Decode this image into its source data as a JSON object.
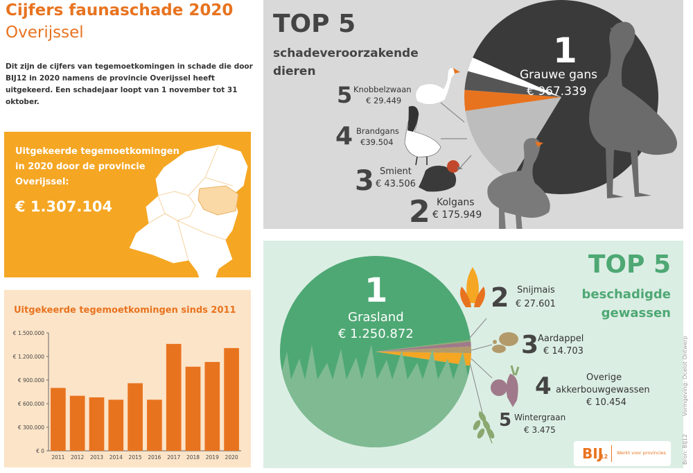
{
  "header": {
    "title": "Cijfers faunaschade 2020",
    "region": "Overijssel",
    "intro": "Dit zijn de cijfers van tegemoetkomingen in schade die door BIJ12 in 2020 namens de provincie Overijssel heeft uitgekeerd. Een schadejaar loopt van 1 november tot 31 oktober."
  },
  "province": {
    "label": "Uitgekeerde tegemoetkomingen in 2020 door de provincie Overijssel:",
    "amount": "€ 1.307.104"
  },
  "bar_section": {
    "title": "Uitgekeerde tegemoetkomingen sinds 2011"
  },
  "chart_data": {
    "type": "bar",
    "title": "Uitgekeerde tegemoetkomingen sinds 2011",
    "categories": [
      "2011",
      "2012",
      "2013",
      "2014",
      "2015",
      "2016",
      "2017",
      "2018",
      "2019",
      "2020"
    ],
    "values": [
      800000,
      700000,
      680000,
      650000,
      860000,
      650000,
      1360000,
      1070000,
      1130000,
      1307104
    ],
    "ylim": [
      0,
      1500000
    ],
    "yticks": [
      "€ 0",
      "€ 300.000",
      "€ 600.000",
      "€ 900.000",
      "€ 1.200.000",
      "€ 1.500.000"
    ],
    "ytick_values": [
      0,
      300000,
      600000,
      900000,
      1200000,
      1500000
    ],
    "color": "#e8731f",
    "grid": false
  },
  "animals": {
    "top": "TOP 5",
    "subtitle_line1": "schadeveroorzakende",
    "subtitle_line2": "dieren",
    "items": [
      {
        "rank": "1",
        "name": "Grauwe gans",
        "value": "€ 967.339",
        "amount": 967339,
        "color": "#3a3a3a"
      },
      {
        "rank": "2",
        "name": "Kolgans",
        "value": "€ 175.949",
        "amount": 175949,
        "color": "#bdbdbd"
      },
      {
        "rank": "3",
        "name": "Smient",
        "value": "€ 43.506",
        "amount": 43506,
        "color": "#e8731f"
      },
      {
        "rank": "4",
        "name": "Brandgans",
        "value": "€39.504",
        "amount": 39504,
        "color": "#555555"
      },
      {
        "rank": "5",
        "name": "Knobbelzwaan",
        "value": "€ 29.449",
        "amount": 29449,
        "color": "#ffffff"
      }
    ]
  },
  "crops": {
    "top": "TOP 5",
    "subtitle_line1": "beschadigde",
    "subtitle_line2": "gewassen",
    "items": [
      {
        "rank": "1",
        "name": "Grasland",
        "value": "€ 1.250.872",
        "amount": 1250872,
        "color": "#4ea874"
      },
      {
        "rank": "2",
        "name": "Snijmais",
        "value": "€ 27.601",
        "amount": 27601,
        "color": "#f5a623"
      },
      {
        "rank": "3",
        "name": "Aardappel",
        "value": "€ 14.703",
        "amount": 14703,
        "color": "#b39a6a"
      },
      {
        "rank": "4",
        "name_line1": "Overige",
        "name_line2": "akkerbouwgewassen",
        "value": "€ 10.454",
        "amount": 10454,
        "color": "#a07a8a"
      },
      {
        "rank": "5",
        "name": "Wintergraan",
        "value": "€ 3.475",
        "amount": 3475,
        "color": "#8aa870"
      }
    ]
  },
  "credit": {
    "source": "Bron: BIJ12",
    "design": "Vormgeving: Ocelot Ontwerp"
  },
  "logo": {
    "text": "BIJ",
    "sub": "12",
    "tagline": "Werkt voor provincies"
  }
}
